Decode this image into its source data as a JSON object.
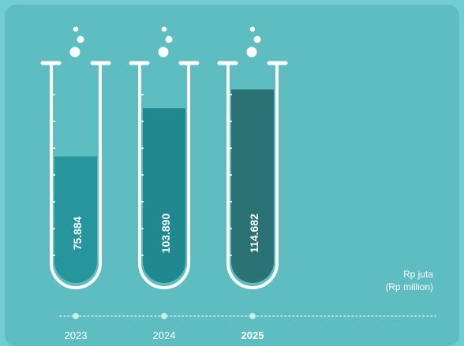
{
  "colors": {
    "background": "#5dbdc1",
    "frame": "#71cdd0",
    "tube_outline": "#ffffff",
    "dots": "#c8ebec",
    "text": "#ffffff"
  },
  "chart_data": {
    "type": "bar",
    "style": "test-tube infographic",
    "categories": [
      "2023",
      "2024",
      "2025"
    ],
    "values": [
      75884,
      103890,
      114682
    ],
    "value_labels": [
      "75.884",
      "103.890",
      "114.682"
    ],
    "bar_colors": [
      "#26959c",
      "#20898f",
      "#2a7274"
    ],
    "highlight_category": "2025",
    "unit_label_line1": "Rp juta",
    "unit_label_line2": "(Rp million)",
    "title": "",
    "xlabel": "",
    "ylabel": "",
    "ylim": [
      0,
      150000
    ],
    "grid": false,
    "legend": "none"
  }
}
